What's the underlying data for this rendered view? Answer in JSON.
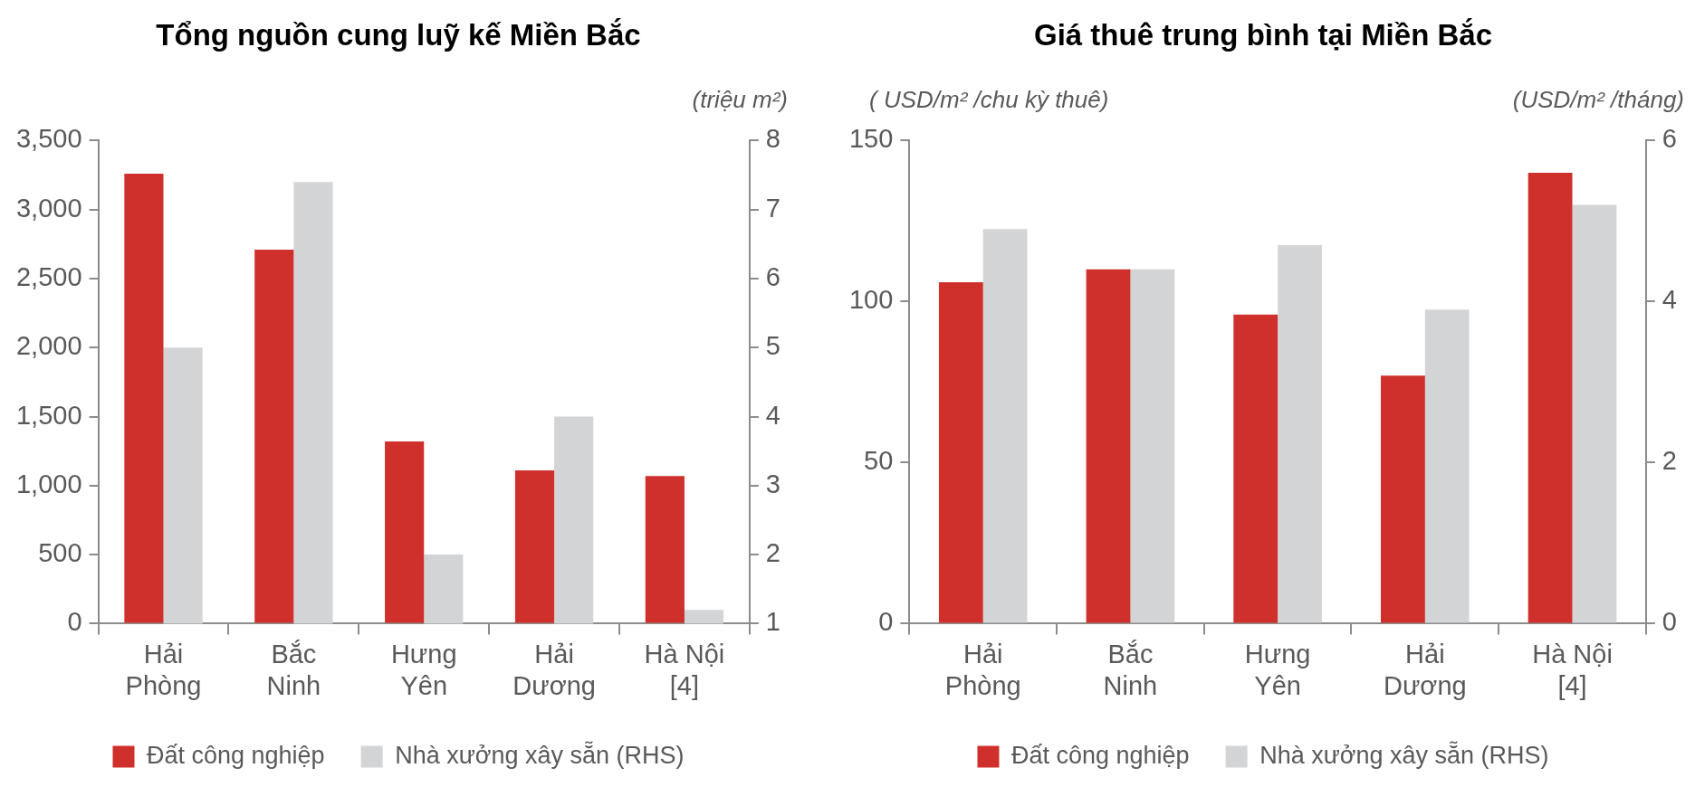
{
  "chart_data": [
    {
      "type": "bar",
      "title": "Tổng nguồn cung luỹ kế Miền Bắc",
      "y2label": "(triệu m²)",
      "categories": [
        "Hải\nPhòng",
        "Bắc\nNinh",
        "Hưng\nYên",
        "Hải\nDương",
        "Hà Nội\n[4]"
      ],
      "series": [
        {
          "name": "Đất công nghiệp",
          "color": "#d0302b",
          "values": [
            3260,
            2710,
            1320,
            1110,
            1070
          ]
        },
        {
          "name": "Nhà xưởng xây sẵn (RHS)",
          "color": "#d3d4d6",
          "axis": "y2",
          "values": [
            5.0,
            7.4,
            2.0,
            4.0,
            1.2
          ]
        }
      ],
      "ylim": [
        0,
        3500
      ],
      "yticks": [
        0,
        500,
        {
          "value": 1000,
          "label": "1,000"
        },
        {
          "value": 1500,
          "label": "1,500"
        },
        {
          "value": 2000,
          "label": "2,000"
        },
        {
          "value": 2500,
          "label": "2,500"
        },
        {
          "value": 3000,
          "label": "3,000"
        },
        {
          "value": 3500,
          "label": "3,500"
        }
      ],
      "y2lim": [
        1,
        8
      ],
      "y2ticks": [
        1,
        2,
        3,
        4,
        5,
        6,
        7,
        8
      ],
      "grid": false,
      "legend": "bottom"
    },
    {
      "type": "bar",
      "title": "Giá thuê trung bình tại Miền Bắc",
      "ylabel": "( USD/m² /chu kỳ thuê)",
      "y2label": "(USD/m² /tháng)",
      "categories": [
        "Hải\nPhòng",
        "Bắc\nNinh",
        "Hưng\nYên",
        "Hải\nDương",
        "Hà Nội\n[4]"
      ],
      "series": [
        {
          "name": "Đất công nghiệp",
          "color": "#d0302b",
          "values": [
            106,
            110,
            96,
            77,
            140
          ]
        },
        {
          "name": "Nhà xưởng xây sẵn (RHS)",
          "color": "#d3d4d6",
          "axis": "y2",
          "values": [
            4.9,
            4.4,
            4.7,
            3.9,
            5.2
          ]
        }
      ],
      "ylim": [
        0,
        150
      ],
      "yticks": [
        0,
        50,
        100,
        150
      ],
      "y2lim": [
        0,
        6
      ],
      "y2ticks": [
        0,
        2,
        4,
        6
      ],
      "grid": false,
      "legend": "bottom"
    }
  ]
}
